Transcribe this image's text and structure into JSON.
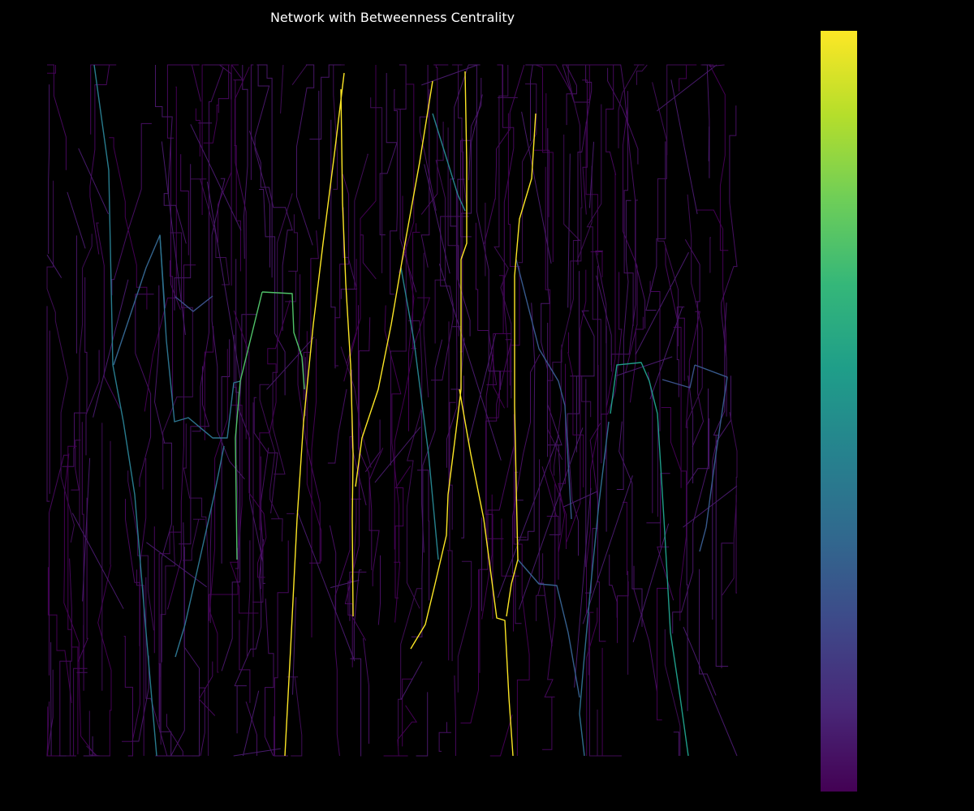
{
  "figure": {
    "title": "Network with Betweenness Centrality",
    "background": "#000000",
    "text_color": "#ffffff"
  },
  "colorbar": {
    "colormap": "viridis",
    "stops": [
      "#440154",
      "#482878",
      "#3e4989",
      "#31688e",
      "#26828e",
      "#1f9e89",
      "#35b779",
      "#6ece58",
      "#b5de2b",
      "#fde725"
    ],
    "tick_labels_visible": false,
    "label": ""
  },
  "chart_data": {
    "type": "network",
    "title": "Network with Betweenness Centrality",
    "edge_color_encoding": "betweenness centrality (viridis colormap, low = dark purple, high = yellow)",
    "axes_visible": false,
    "high_centrality_paths": [
      {
        "centrality": 1.0,
        "points": [
          [
            424,
            90
          ],
          [
            412,
            190
          ],
          [
            398,
            300
          ],
          [
            386,
            400
          ],
          [
            374,
            520
          ],
          [
            366,
            640
          ],
          [
            358,
            800
          ],
          [
            351,
            932
          ]
        ]
      },
      {
        "centrality": 1.0,
        "points": [
          [
            420,
            110
          ],
          [
            422,
            250
          ],
          [
            426,
            350
          ],
          [
            432,
            450
          ],
          [
            435,
            560
          ],
          [
            434,
            640
          ],
          [
            435,
            760
          ]
        ]
      },
      {
        "centrality": 1.0,
        "points": [
          [
            533,
            100
          ],
          [
            517,
            200
          ],
          [
            499,
            300
          ],
          [
            482,
            400
          ],
          [
            466,
            480
          ],
          [
            446,
            540
          ],
          [
            438,
            600
          ]
        ]
      },
      {
        "centrality": 1.0,
        "points": [
          [
            573,
            88
          ],
          [
            575,
            200
          ],
          [
            575,
            300
          ],
          [
            568,
            320
          ],
          [
            568,
            480
          ],
          [
            562,
            530
          ],
          [
            552,
            610
          ],
          [
            550,
            660
          ],
          [
            536,
            720
          ],
          [
            524,
            770
          ],
          [
            506,
            800
          ]
        ]
      },
      {
        "centrality": 1.0,
        "points": [
          [
            566,
            480
          ],
          [
            580,
            560
          ],
          [
            596,
            640
          ],
          [
            612,
            762
          ],
          [
            622,
            765
          ],
          [
            627,
            860
          ],
          [
            632,
            932
          ]
        ]
      },
      {
        "centrality": 1.0,
        "points": [
          [
            660,
            140
          ],
          [
            655,
            220
          ],
          [
            640,
            270
          ],
          [
            634,
            340
          ],
          [
            634,
            500
          ],
          [
            636,
            600
          ],
          [
            638,
            690
          ],
          [
            630,
            720
          ],
          [
            624,
            760
          ]
        ]
      },
      {
        "centrality": 0.72,
        "points": [
          [
            323,
            360
          ],
          [
            360,
            362
          ],
          [
            362,
            410
          ],
          [
            372,
            440
          ],
          [
            375,
            480
          ]
        ]
      },
      {
        "centrality": 0.72,
        "points": [
          [
            323,
            360
          ],
          [
            296,
            470
          ],
          [
            290,
            540
          ],
          [
            292,
            690
          ]
        ]
      },
      {
        "centrality": 0.55,
        "points": [
          [
            752,
            510
          ],
          [
            760,
            450
          ],
          [
            790,
            447
          ],
          [
            800,
            470
          ],
          [
            810,
            510
          ],
          [
            818,
            640
          ],
          [
            826,
            780
          ],
          [
            838,
            860
          ],
          [
            848,
            932
          ]
        ]
      },
      {
        "centrality": 0.45,
        "points": [
          [
            533,
            140
          ],
          [
            564,
            240
          ],
          [
            573,
            260
          ]
        ]
      },
      {
        "centrality": 0.45,
        "points": [
          [
            494,
            330
          ],
          [
            510,
            420
          ],
          [
            528,
            560
          ],
          [
            540,
            690
          ]
        ]
      },
      {
        "centrality": 0.42,
        "points": [
          [
            116,
            80
          ],
          [
            134,
            210
          ],
          [
            139,
            450
          ],
          [
            152,
            520
          ],
          [
            166,
            610
          ],
          [
            180,
            780
          ],
          [
            193,
            932
          ]
        ]
      },
      {
        "centrality": 0.38,
        "points": [
          [
            197,
            290
          ],
          [
            205,
            420
          ],
          [
            215,
            520
          ],
          [
            232,
            515
          ],
          [
            262,
            540
          ],
          [
            280,
            540
          ],
          [
            288,
            472
          ],
          [
            296,
            470
          ]
        ]
      },
      {
        "centrality": 0.38,
        "points": [
          [
            276,
            550
          ],
          [
            264,
            610
          ],
          [
            246,
            690
          ],
          [
            228,
            770
          ],
          [
            216,
            810
          ]
        ]
      },
      {
        "centrality": 0.35,
        "points": [
          [
            750,
            520
          ],
          [
            738,
            620
          ],
          [
            728,
            720
          ],
          [
            719,
            820
          ],
          [
            714,
            880
          ],
          [
            720,
            932
          ]
        ]
      },
      {
        "centrality": 0.32,
        "points": [
          [
            140,
            450
          ],
          [
            160,
            390
          ],
          [
            180,
            330
          ],
          [
            197,
            290
          ],
          [
            203,
            380
          ]
        ]
      },
      {
        "centrality": 0.3,
        "points": [
          [
            638,
            690
          ],
          [
            664,
            720
          ],
          [
            686,
            722
          ],
          [
            700,
            780
          ],
          [
            714,
            860
          ]
        ]
      },
      {
        "centrality": 0.28,
        "points": [
          [
            636,
            320
          ],
          [
            664,
            430
          ],
          [
            688,
            470
          ],
          [
            696,
            500
          ],
          [
            704,
            640
          ]
        ]
      },
      {
        "centrality": 0.28,
        "points": [
          [
            856,
            450
          ],
          [
            896,
            465
          ],
          [
            882,
            560
          ],
          [
            870,
            650
          ],
          [
            862,
            680
          ]
        ]
      },
      {
        "centrality": 0.25,
        "points": [
          [
            816,
            468
          ],
          [
            850,
            478
          ],
          [
            856,
            450
          ]
        ]
      },
      {
        "centrality": 0.25,
        "points": [
          [
            216,
            366
          ],
          [
            238,
            384
          ],
          [
            262,
            365
          ]
        ]
      }
    ]
  }
}
